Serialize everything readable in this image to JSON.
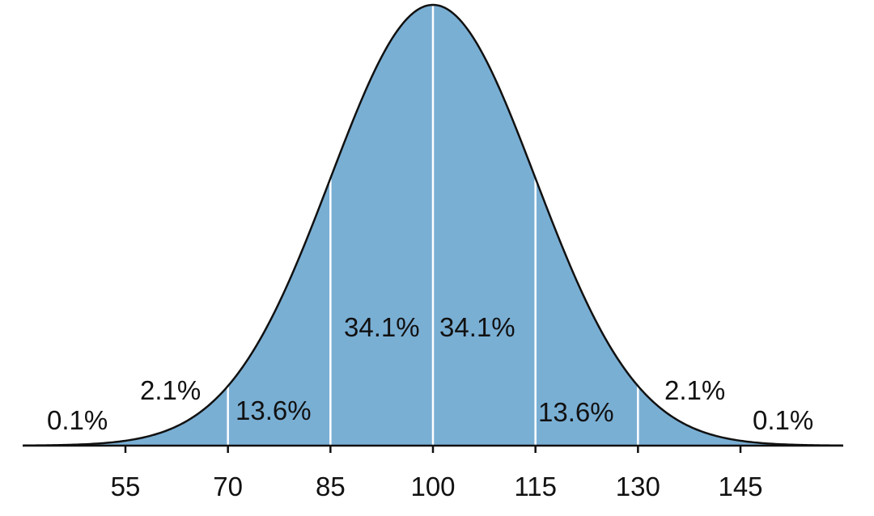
{
  "chart_data": {
    "type": "area",
    "distribution": "normal",
    "mean": 100,
    "sd": 15,
    "xlim": [
      40,
      160
    ],
    "xticks": [
      55,
      70,
      85,
      100,
      115,
      130,
      145
    ],
    "tick_labels": [
      "55",
      "70",
      "85",
      "100",
      "115",
      "130",
      "145"
    ],
    "dividers": [
      70,
      85,
      100,
      115,
      130
    ],
    "regions": [
      {
        "label": "0.1%",
        "range": [
          "-inf",
          55
        ]
      },
      {
        "label": "2.1%",
        "range": [
          55,
          70
        ]
      },
      {
        "label": "13.6%",
        "range": [
          70,
          85
        ]
      },
      {
        "label": "34.1%",
        "range": [
          85,
          100
        ]
      },
      {
        "label": "34.1%",
        "range": [
          100,
          115
        ]
      },
      {
        "label": "13.6%",
        "range": [
          115,
          130
        ]
      },
      {
        "label": "2.1%",
        "range": [
          130,
          145
        ]
      },
      {
        "label": "0.1%",
        "range": [
          145,
          "inf"
        ]
      }
    ],
    "colors": {
      "fill": "#7aafd4",
      "curve": "#111111",
      "divider": "#ffffff",
      "axis": "#111111"
    }
  }
}
